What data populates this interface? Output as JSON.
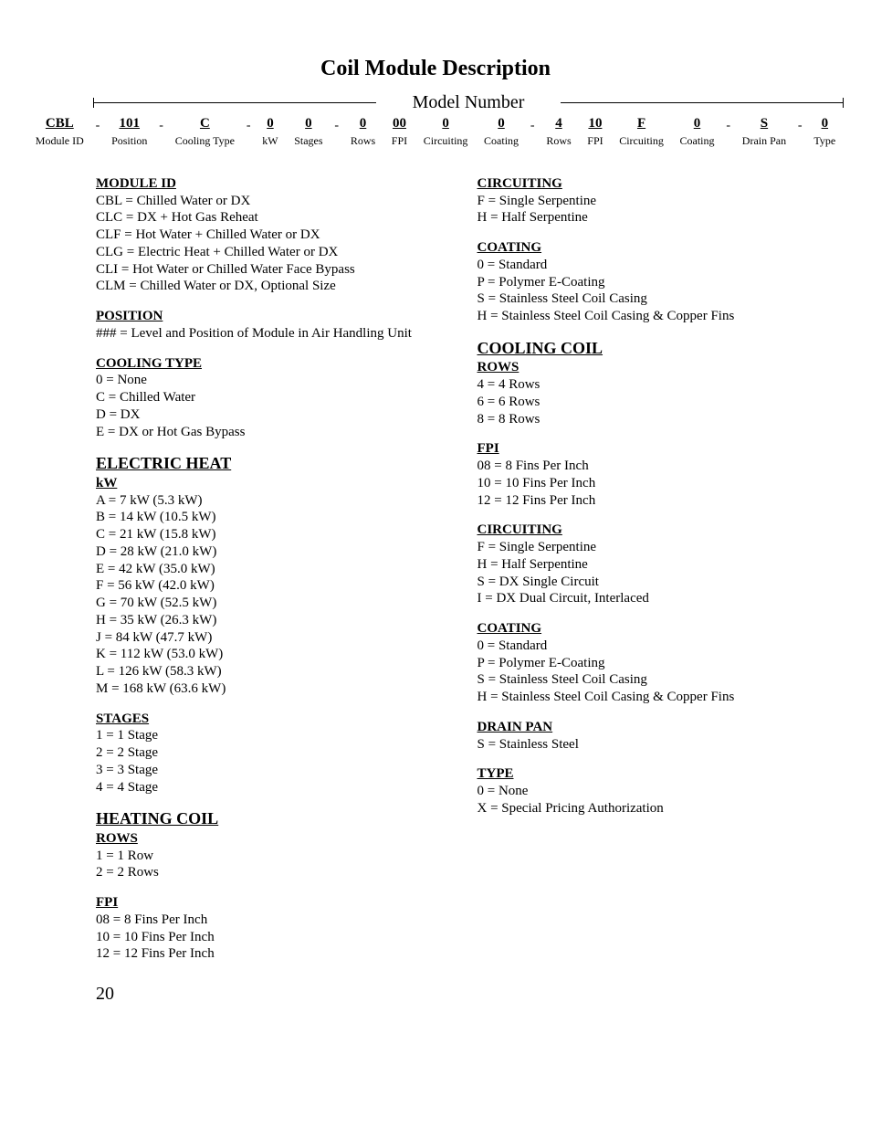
{
  "title": "Coil Module Description",
  "model_label": "Model Number",
  "fields": [
    {
      "code": "CBL",
      "label": "Module ID"
    },
    {
      "code": "101",
      "label": "Position"
    },
    {
      "code": "C",
      "label": "Cooling Type"
    },
    {
      "code": "0",
      "label": "kW"
    },
    {
      "code": "0",
      "label": "Stages"
    },
    {
      "code": "0",
      "label": "Rows"
    },
    {
      "code": "00",
      "label": "FPI"
    },
    {
      "code": "0",
      "label": "Circuiting"
    },
    {
      "code": "0",
      "label": "Coating"
    },
    {
      "code": "4",
      "label": "Rows"
    },
    {
      "code": "10",
      "label": "FPI"
    },
    {
      "code": "F",
      "label": "Circuiting"
    },
    {
      "code": "0",
      "label": "Coating"
    },
    {
      "code": "S",
      "label": "Drain Pan"
    },
    {
      "code": "0",
      "label": "Type"
    }
  ],
  "dash_positions": [
    0,
    1,
    2,
    4,
    8,
    12,
    13
  ],
  "left": [
    {
      "type": "heading",
      "text": "MODULE ID",
      "first": true
    },
    {
      "type": "items",
      "lines": [
        "CBL = Chilled Water or DX",
        "CLC = DX + Hot Gas Reheat",
        "CLF = Hot Water + Chilled Water or DX",
        "CLG = Electric Heat + Chilled Water or DX",
        "CLI = Hot Water or Chilled Water Face Bypass",
        "CLM = Chilled Water or DX, Optional Size"
      ]
    },
    {
      "type": "heading",
      "text": "POSITION"
    },
    {
      "type": "items",
      "lines": [
        "### = Level and Position of Module in Air Handling Unit"
      ]
    },
    {
      "type": "heading",
      "text": "COOLING TYPE"
    },
    {
      "type": "items",
      "lines": [
        "0 = None",
        "C = Chilled Water",
        "D = DX",
        "E = DX or Hot Gas Bypass"
      ]
    },
    {
      "type": "major",
      "text": "ELECTRIC HEAT"
    },
    {
      "type": "sub",
      "text": "kW"
    },
    {
      "type": "items",
      "lines": [
        "A = 7 kW (5.3 kW)",
        "B = 14 kW (10.5 kW)",
        "C = 21 kW (15.8 kW)",
        "D = 28 kW (21.0 kW)",
        "E = 42 kW (35.0 kW)",
        "F = 56 kW (42.0 kW)",
        "G = 70 kW (52.5 kW)",
        "H = 35 kW (26.3 kW)",
        "J = 84 kW (47.7 kW)",
        "K = 112 kW (53.0 kW)",
        "L = 126 kW (58.3 kW)",
        "M = 168 kW (63.6 kW)"
      ]
    },
    {
      "type": "heading",
      "text": "STAGES"
    },
    {
      "type": "items",
      "lines": [
        "1 = 1 Stage",
        "2 = 2 Stage",
        "3 = 3 Stage",
        "4 = 4 Stage"
      ]
    },
    {
      "type": "major",
      "text": "HEATING COIL"
    },
    {
      "type": "sub",
      "text": "ROWS"
    },
    {
      "type": "items",
      "lines": [
        "1 = 1 Row",
        "2 = 2 Rows"
      ]
    },
    {
      "type": "heading",
      "text": "FPI"
    },
    {
      "type": "items",
      "lines": [
        "08 = 8 Fins Per Inch",
        "10 = 10 Fins Per Inch",
        "12 = 12 Fins Per Inch"
      ]
    }
  ],
  "right": [
    {
      "type": "heading",
      "text": "CIRCUITING",
      "first": true
    },
    {
      "type": "items",
      "lines": [
        "F = Single Serpentine",
        "H = Half Serpentine"
      ]
    },
    {
      "type": "heading",
      "text": "COATING"
    },
    {
      "type": "items",
      "lines": [
        "0 = Standard",
        "P = Polymer E-Coating",
        "S = Stainless Steel Coil Casing",
        "H = Stainless Steel Coil Casing & Copper Fins"
      ]
    },
    {
      "type": "major",
      "text": "COOLING COIL"
    },
    {
      "type": "sub",
      "text": "ROWS"
    },
    {
      "type": "items",
      "lines": [
        "4 = 4 Rows",
        "6 = 6 Rows",
        "8 = 8 Rows"
      ]
    },
    {
      "type": "heading",
      "text": "FPI"
    },
    {
      "type": "items",
      "lines": [
        "08 = 8 Fins Per Inch",
        "10 = 10 Fins Per Inch",
        "12 = 12 Fins Per Inch"
      ]
    },
    {
      "type": "heading",
      "text": "CIRCUITING"
    },
    {
      "type": "items",
      "lines": [
        "F = Single Serpentine",
        "H = Half Serpentine",
        "S = DX Single Circuit",
        "I = DX Dual Circuit, Interlaced"
      ]
    },
    {
      "type": "heading",
      "text": "COATING"
    },
    {
      "type": "items",
      "lines": [
        "0 = Standard",
        "P = Polymer E-Coating",
        "S = Stainless Steel Coil Casing",
        "H = Stainless Steel Coil Casing & Copper Fins"
      ]
    },
    {
      "type": "heading",
      "text": "DRAIN PAN"
    },
    {
      "type": "items",
      "lines": [
        "S = Stainless Steel"
      ]
    },
    {
      "type": "heading",
      "text": "TYPE"
    },
    {
      "type": "items",
      "lines": [
        "0 = None",
        "X = Special Pricing Authorization"
      ]
    }
  ],
  "page_number": "20"
}
